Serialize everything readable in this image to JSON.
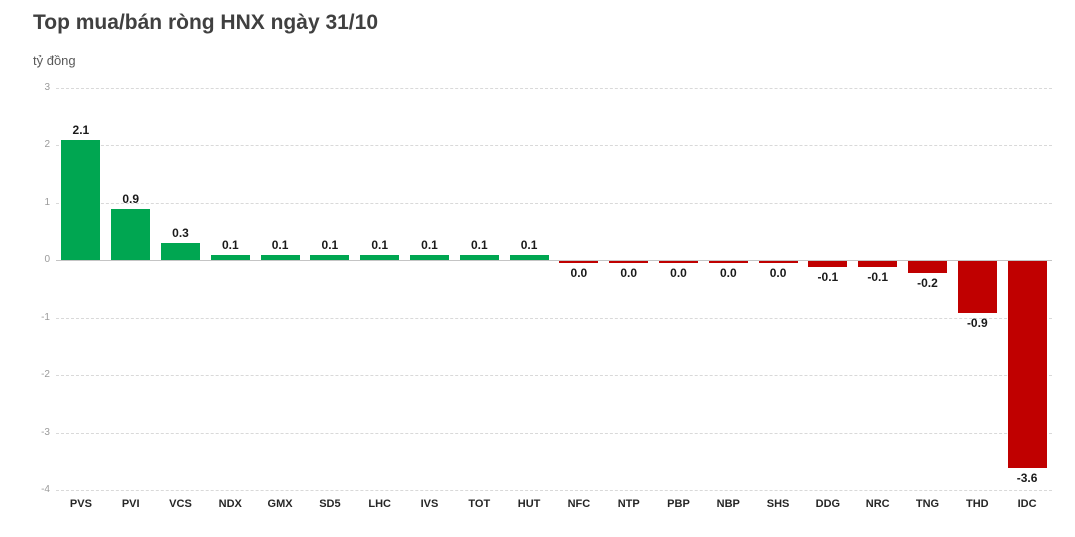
{
  "header": {
    "title": "Top mua/bán ròng HNX ngày 31/10",
    "unit_label": "tỷ đồng"
  },
  "colors": {
    "buy": "#00a651",
    "sell": "#c00000",
    "title_text": "#404040",
    "unit_text": "#595959",
    "gridline": "#d9d9d9",
    "zero_line": "#c4c4c4",
    "tick_label": "#9b9b9b",
    "value_label": "#1a1a1a",
    "category_label": "#262626",
    "background": "#ffffff"
  },
  "chart_data": {
    "type": "bar",
    "title": "Top mua/bán ròng HNX ngày 31/10",
    "xlabel": "",
    "ylabel": "tỷ đồng",
    "ylim": [
      -4,
      3
    ],
    "yticks": [
      3,
      2,
      1,
      0,
      -1,
      -2,
      -3,
      -4
    ],
    "grid": true,
    "legend": false,
    "categories": [
      "PVS",
      "PVI",
      "VCS",
      "NDX",
      "GMX",
      "SD5",
      "LHC",
      "IVS",
      "TOT",
      "HUT",
      "NFC",
      "NTP",
      "PBP",
      "NBP",
      "SHS",
      "DDG",
      "NRC",
      "TNG",
      "THD",
      "IDC"
    ],
    "values": [
      2.1,
      0.9,
      0.3,
      0.1,
      0.1,
      0.1,
      0.1,
      0.1,
      0.1,
      0.1,
      0.0,
      0.0,
      0.0,
      0.0,
      0.0,
      -0.1,
      -0.1,
      -0.2,
      -0.9,
      -3.6
    ],
    "value_labels": [
      "2.1",
      "0.9",
      "0.3",
      "0.1",
      "0.1",
      "0.1",
      "0.1",
      "0.1",
      "0.1",
      "0.1",
      "0.0",
      "0.0",
      "0.0",
      "0.0",
      "0.0",
      "-0.1",
      "-0.1",
      "-0.2",
      "-0.9",
      "-3.6"
    ],
    "groups": [
      "buy",
      "buy",
      "buy",
      "buy",
      "buy",
      "buy",
      "buy",
      "buy",
      "buy",
      "buy",
      "sell",
      "sell",
      "sell",
      "sell",
      "sell",
      "sell",
      "sell",
      "sell",
      "sell",
      "sell"
    ]
  }
}
